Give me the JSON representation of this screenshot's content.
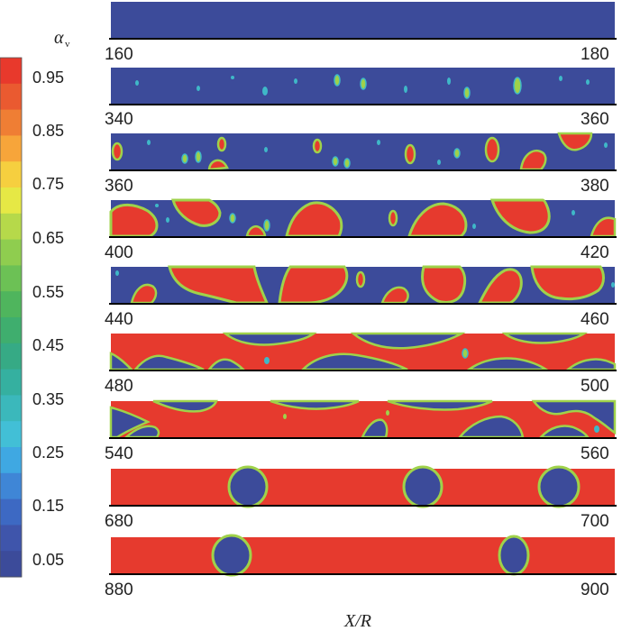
{
  "figure": {
    "colorbar": {
      "variable": "α",
      "subscript": "v",
      "labels": [
        "0.95",
        "0.85",
        "0.75",
        "0.65",
        "0.55",
        "0.45",
        "0.35",
        "0.25",
        "0.15",
        "0.05"
      ],
      "colors": [
        "#e8392c",
        "#ea5a30",
        "#ef7e34",
        "#f7a53a",
        "#f6cf3f",
        "#e6e845",
        "#b6d94a",
        "#8fcd4f",
        "#6cc155",
        "#4fb55d",
        "#3fae6e",
        "#36aa85",
        "#35b0a0",
        "#3bb8bb",
        "#42bfd6",
        "#3fa8e2",
        "#3f86d6",
        "#3d69c3",
        "#3f55ab",
        "#3c4b9a"
      ]
    },
    "axis_title": "X/R",
    "colors": {
      "liquid": "#3c4b9a",
      "vapor": "#e63a2e",
      "interface": "#9fd24a",
      "edge": "#3fb8c8"
    },
    "panels": [
      {
        "left": "160",
        "right": "180"
      },
      {
        "left": "340",
        "right": "360"
      },
      {
        "left": "360",
        "right": "380"
      },
      {
        "left": "400",
        "right": "420"
      },
      {
        "left": "440",
        "right": "460"
      },
      {
        "left": "480",
        "right": "500"
      },
      {
        "left": "540",
        "right": "560"
      },
      {
        "left": "680",
        "right": "700"
      },
      {
        "left": "880",
        "right": "900"
      }
    ]
  }
}
